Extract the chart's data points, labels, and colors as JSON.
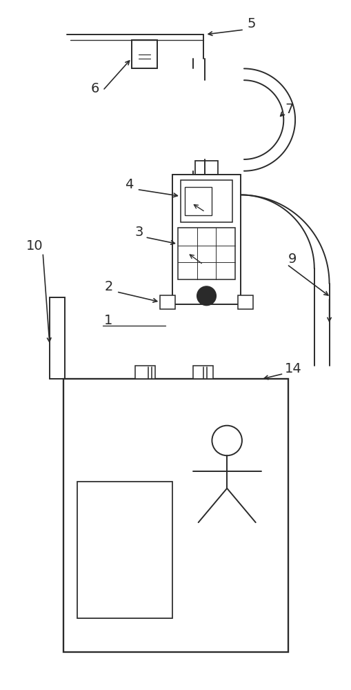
{
  "bg_color": "#ffffff",
  "line_color": "#2a2a2a",
  "lw": 1.4,
  "fig_w": 5.1,
  "fig_h": 10.0
}
